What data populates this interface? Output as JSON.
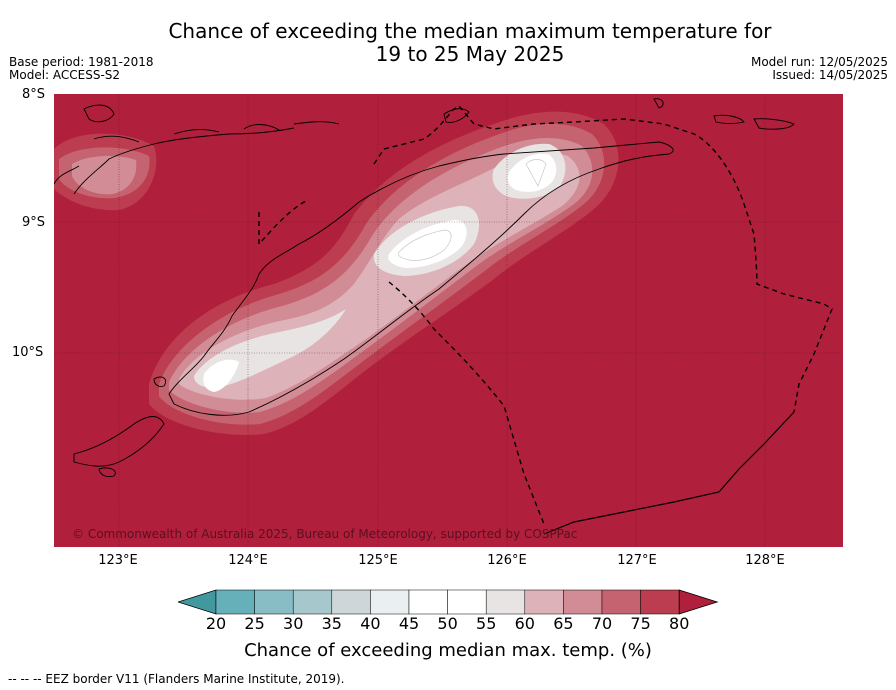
{
  "title_line1": "Chance of exceeding the median maximum temperature for",
  "title_line2": "19 to 25 May 2025",
  "base_period": "Base period: 1981-2018",
  "model": "Model: ACCESS-S2",
  "model_run": "Model run: 12/05/2025",
  "issued": "Issued: 14/05/2025",
  "lat_labels": [
    "8°S",
    "9°S",
    "10°S"
  ],
  "lon_labels": [
    "123°E",
    "124°E",
    "125°E",
    "126°E",
    "127°E",
    "128°E"
  ],
  "copyright": "© Commonwealth of Australia 2025, Bureau of Meteorology, supported by COSPPac",
  "colorbar": {
    "ticks": [
      "20",
      "25",
      "30",
      "35",
      "40",
      "45",
      "50",
      "55",
      "60",
      "65",
      "70",
      "75",
      "80"
    ],
    "colors": [
      "#41999f",
      "#66b0ba",
      "#88bdc6",
      "#a6c7cc",
      "#cfd6d9",
      "#eaf0f2",
      "#ffffff",
      "#ffffff",
      "#e8e4e4",
      "#ddb2b9",
      "#d18c95",
      "#c56470",
      "#bc3d4f",
      "#b01f3b"
    ],
    "title": "Chance of exceeding median max. temp. (%)"
  },
  "footnote": "--  --  -- EEZ border V11 (Flanders Marine Institute, 2019).",
  "colors": {
    "background_high": "#b01f3b"
  }
}
